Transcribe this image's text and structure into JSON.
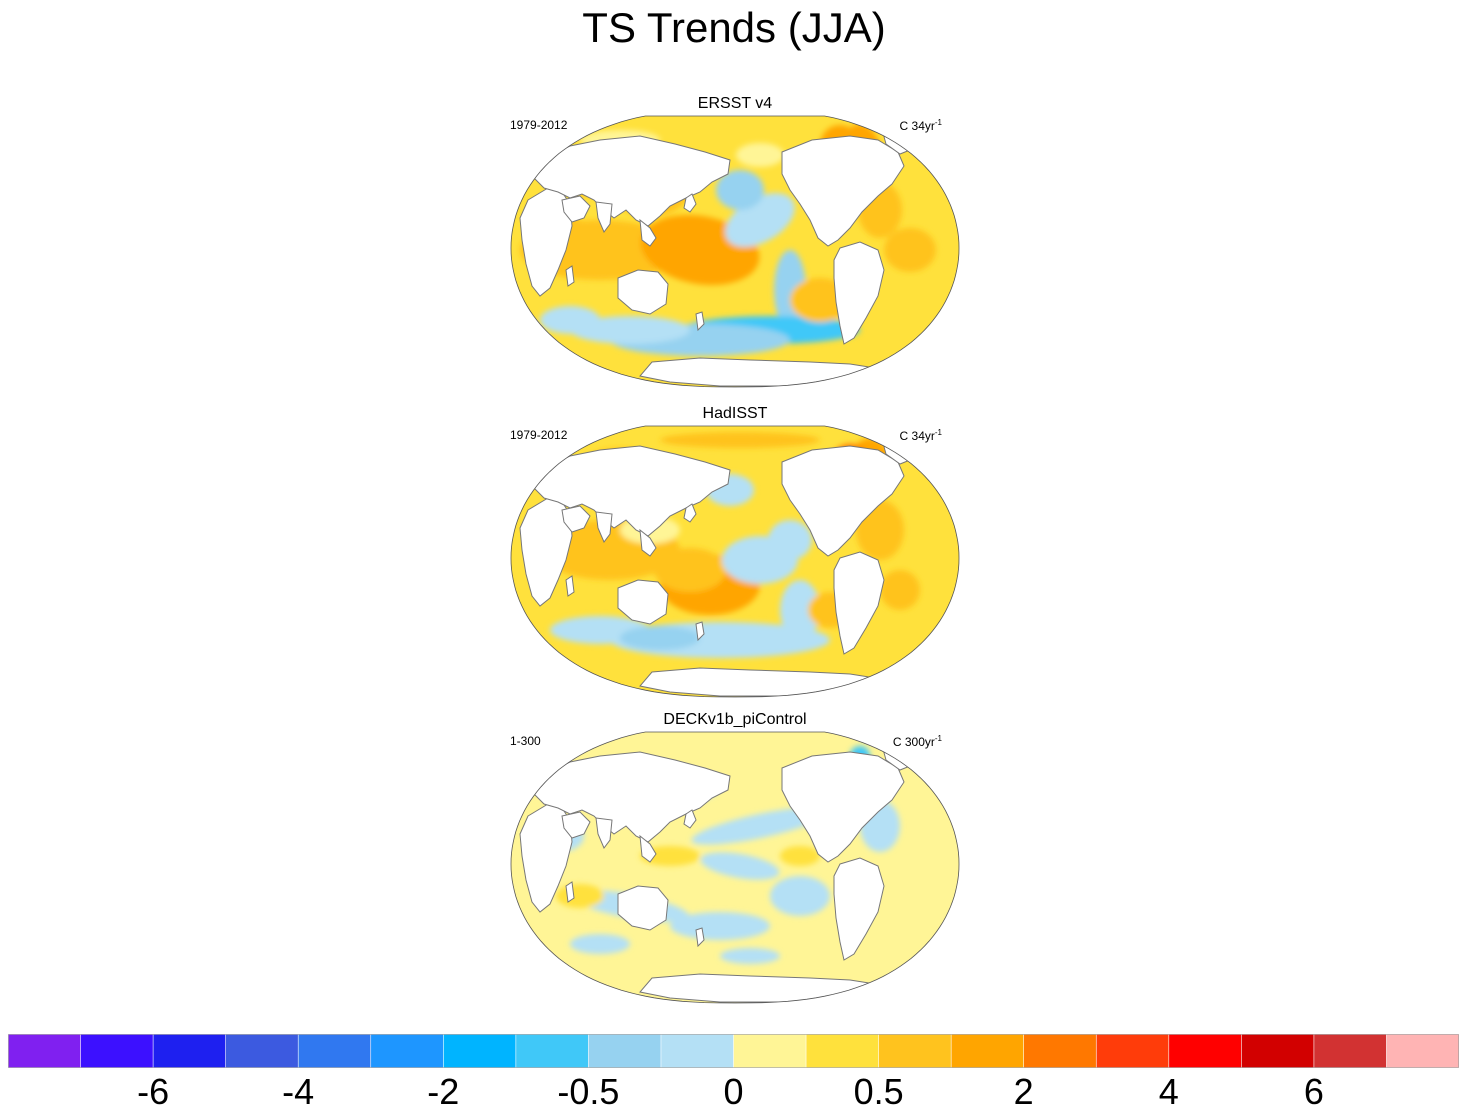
{
  "title": "TS Trends (JJA)",
  "panels": [
    {
      "title": "ERSST v4",
      "period": "1979-2012",
      "units_prefix": "C 34yr",
      "units_exp": "-1",
      "pattern": "ersst"
    },
    {
      "title": "HadISST",
      "period": "1979-2012",
      "units_prefix": "C 34yr",
      "units_exp": "-1",
      "pattern": "hadisst"
    },
    {
      "title": "DECKv1b_piControl",
      "period": "1-300",
      "units_prefix": "C 300yr",
      "units_exp": "-1",
      "pattern": "picontrol"
    }
  ],
  "colorbar": {
    "colors": [
      "#8020f0",
      "#3c10ff",
      "#1e20f0",
      "#3c5ae0",
      "#3078f0",
      "#1e96ff",
      "#00b4ff",
      "#40c8f8",
      "#96d2f0",
      "#b4e0f5",
      "#fff596",
      "#ffe13c",
      "#ffc31e",
      "#ffa500",
      "#ff7800",
      "#ff3c0a",
      "#ff0000",
      "#d20000",
      "#d23232",
      "#ffb4b4"
    ],
    "tick_labels": [
      "-6",
      "-4",
      "-2",
      "-0.5",
      "0",
      "0.5",
      "2",
      "4",
      "6"
    ]
  }
}
